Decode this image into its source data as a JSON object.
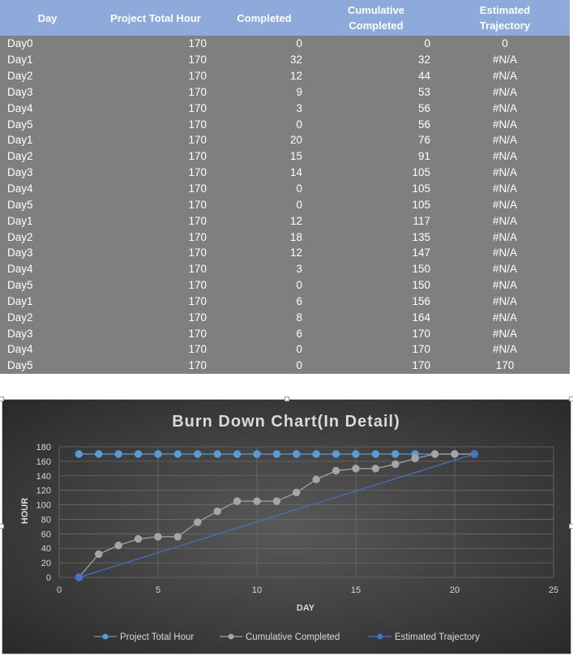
{
  "table": {
    "headers": [
      "Day",
      "Project Total Hour",
      "Completed",
      "Cumulative Completed",
      "Estimated Trajectory"
    ],
    "rows": [
      [
        "Day0",
        "170",
        "0",
        "0",
        "0"
      ],
      [
        "Day1",
        "170",
        "32",
        "32",
        "#N/A"
      ],
      [
        "Day2",
        "170",
        "12",
        "44",
        "#N/A"
      ],
      [
        "Day3",
        "170",
        "9",
        "53",
        "#N/A"
      ],
      [
        "Day4",
        "170",
        "3",
        "56",
        "#N/A"
      ],
      [
        "Day5",
        "170",
        "0",
        "56",
        "#N/A"
      ],
      [
        "Day1",
        "170",
        "20",
        "76",
        "#N/A"
      ],
      [
        "Day2",
        "170",
        "15",
        "91",
        "#N/A"
      ],
      [
        "Day3",
        "170",
        "14",
        "105",
        "#N/A"
      ],
      [
        "Day4",
        "170",
        "0",
        "105",
        "#N/A"
      ],
      [
        "Day5",
        "170",
        "0",
        "105",
        "#N/A"
      ],
      [
        "Day1",
        "170",
        "12",
        "117",
        "#N/A"
      ],
      [
        "Day2",
        "170",
        "18",
        "135",
        "#N/A"
      ],
      [
        "Day3",
        "170",
        "12",
        "147",
        "#N/A"
      ],
      [
        "Day4",
        "170",
        "3",
        "150",
        "#N/A"
      ],
      [
        "Day5",
        "170",
        "0",
        "150",
        "#N/A"
      ],
      [
        "Day1",
        "170",
        "6",
        "156",
        "#N/A"
      ],
      [
        "Day2",
        "170",
        "8",
        "164",
        "#N/A"
      ],
      [
        "Day3",
        "170",
        "6",
        "170",
        "#N/A"
      ],
      [
        "Day4",
        "170",
        "0",
        "170",
        "#N/A"
      ],
      [
        "Day5",
        "170",
        "0",
        "170",
        "170"
      ]
    ]
  },
  "chart_data": {
    "type": "line",
    "title": "Burn Down Chart(In Detail)",
    "xlabel": "DAY",
    "ylabel": "HOUR",
    "xlim": [
      0,
      25
    ],
    "ylim": [
      0,
      180
    ],
    "xticks": [
      0,
      5,
      10,
      15,
      20,
      25
    ],
    "yticks": [
      0,
      20,
      40,
      60,
      80,
      100,
      120,
      140,
      160,
      180
    ],
    "grid": true,
    "legend_position": "bottom",
    "colors": {
      "background_center": "#595959",
      "background_edge": "#262626",
      "text": "#d9d9d9",
      "grid": "#6b6b6b"
    },
    "series": [
      {
        "name": "Project Total Hour",
        "color": "#5b9bd5",
        "markers": true,
        "x": [
          1,
          2,
          3,
          4,
          5,
          6,
          7,
          8,
          9,
          10,
          11,
          12,
          13,
          14,
          15,
          16,
          17,
          18,
          19,
          20,
          21
        ],
        "y": [
          170,
          170,
          170,
          170,
          170,
          170,
          170,
          170,
          170,
          170,
          170,
          170,
          170,
          170,
          170,
          170,
          170,
          170,
          170,
          170,
          170
        ]
      },
      {
        "name": "Cumulative Completed",
        "color": "#a5a5a5",
        "markers": true,
        "x": [
          1,
          2,
          3,
          4,
          5,
          6,
          7,
          8,
          9,
          10,
          11,
          12,
          13,
          14,
          15,
          16,
          17,
          18,
          19,
          20,
          21
        ],
        "y": [
          0,
          32,
          44,
          53,
          56,
          56,
          76,
          91,
          105,
          105,
          105,
          117,
          135,
          147,
          150,
          150,
          156,
          164,
          170,
          170,
          170
        ]
      },
      {
        "name": "Estimated Trajectory",
        "color": "#4472c4",
        "markers": true,
        "marker_only_at_ends": true,
        "x": [
          1,
          21
        ],
        "y": [
          0,
          170
        ]
      }
    ]
  }
}
